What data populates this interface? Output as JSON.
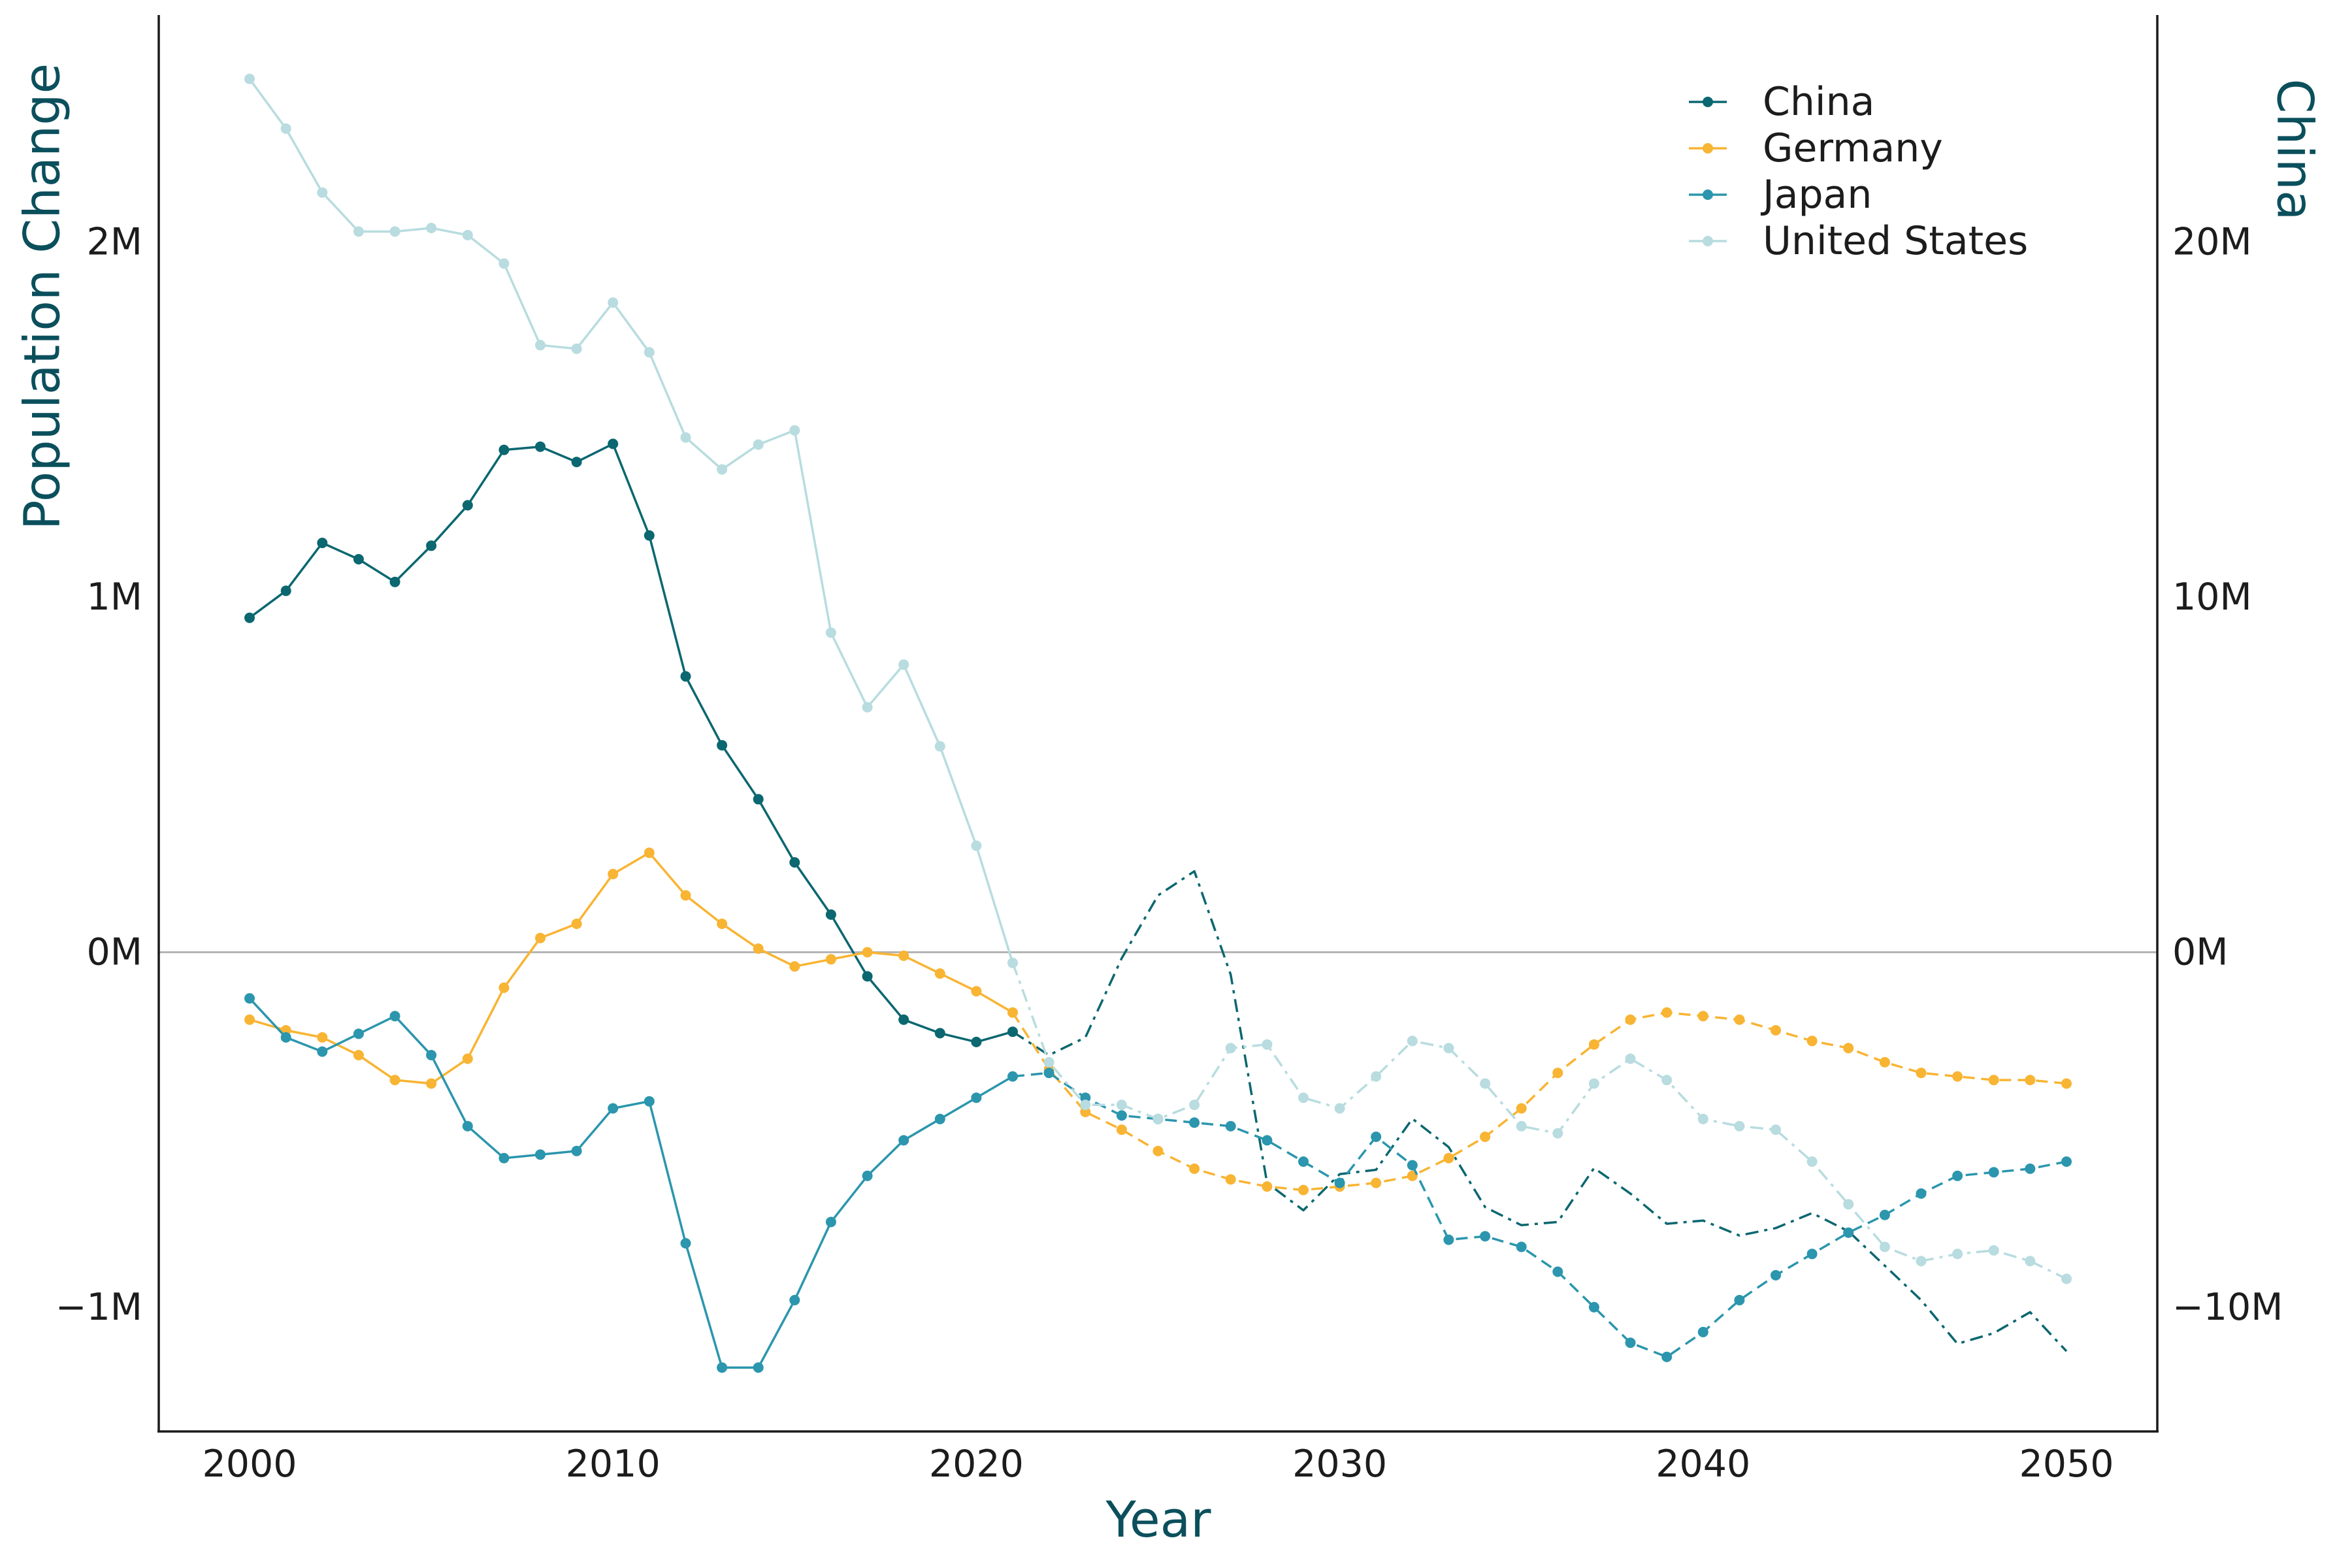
{
  "chart_data": {
    "type": "line",
    "xlabel": "Year",
    "ylabel": "Population Change",
    "y2label": "China",
    "xlim": [
      1997.5,
      2052.5
    ],
    "ylim": [
      -1.35,
      2.64
    ],
    "y2lim": [
      -13.5,
      26.4
    ],
    "x_ticks": [
      2000,
      2010,
      2020,
      2030,
      2040,
      2050
    ],
    "x_tick_labels": [
      "2000",
      "2010",
      "2020",
      "2030",
      "2040",
      "2050"
    ],
    "y_ticks": [
      -1,
      0,
      1,
      2
    ],
    "y_tick_labels": [
      "−1M",
      "0M",
      "1M",
      "2M"
    ],
    "y2_ticks": [
      -10,
      0,
      10,
      20
    ],
    "y2_tick_labels": [
      "−10M",
      "0M",
      "10M",
      "20M"
    ],
    "grid": false,
    "zero_line": true,
    "legend_position": "top-right",
    "x": [
      2000,
      2001,
      2002,
      2003,
      2004,
      2005,
      2006,
      2007,
      2008,
      2009,
      2010,
      2011,
      2012,
      2013,
      2014,
      2015,
      2016,
      2017,
      2018,
      2019,
      2020,
      2021,
      2022,
      2023,
      2024,
      2025,
      2026,
      2027,
      2028,
      2029,
      2030,
      2031,
      2032,
      2033,
      2034,
      2035,
      2036,
      2037,
      2038,
      2039,
      2040,
      2041,
      2042,
      2043,
      2044,
      2045,
      2046,
      2047,
      2048,
      2049,
      2050
    ],
    "series": [
      {
        "name": "China",
        "axis": "right",
        "color": "#0b6770",
        "solid_through": 2021,
        "projected_style": "dashdot",
        "projected_markers": false,
        "values": [
          9.42,
          10.18,
          11.53,
          11.07,
          10.43,
          11.45,
          12.59,
          14.15,
          14.24,
          13.81,
          14.32,
          11.74,
          7.77,
          5.83,
          4.31,
          2.53,
          1.06,
          -0.68,
          -1.9,
          -2.28,
          -2.53,
          -2.24,
          -2.9,
          -2.4,
          -0.17,
          1.6,
          2.28,
          -0.63,
          -6.5,
          -7.27,
          -6.25,
          -6.13,
          -4.69,
          -5.49,
          -7.18,
          -7.69,
          -7.6,
          -6.08,
          -6.8,
          -7.65,
          -7.56,
          -7.98,
          -7.77,
          -7.35,
          -7.86,
          -8.83,
          -9.8,
          -11.03,
          -10.73,
          -10.14,
          -11.24
        ]
      },
      {
        "name": "Germany",
        "axis": "left",
        "color": "#f8b433",
        "solid_through": 2021,
        "projected_style": "dashed",
        "projected_markers": true,
        "values": [
          -0.19,
          -0.22,
          -0.24,
          -0.29,
          -0.36,
          -0.37,
          -0.3,
          -0.1,
          0.04,
          0.08,
          0.22,
          0.28,
          0.16,
          0.08,
          0.01,
          -0.04,
          -0.02,
          0.0,
          -0.01,
          -0.06,
          -0.11,
          -0.17,
          -0.33,
          -0.45,
          -0.5,
          -0.56,
          -0.61,
          -0.64,
          -0.66,
          -0.67,
          -0.66,
          -0.65,
          -0.63,
          -0.58,
          -0.52,
          -0.44,
          -0.34,
          -0.26,
          -0.19,
          -0.17,
          -0.18,
          -0.19,
          -0.22,
          -0.25,
          -0.27,
          -0.31,
          -0.34,
          -0.35,
          -0.36,
          -0.36,
          -0.37
        ]
      },
      {
        "name": "Japan",
        "axis": "left",
        "color": "#2b96ad",
        "solid_through": 2021,
        "projected_style": "dashed",
        "projected_markers": true,
        "values": [
          -0.13,
          -0.24,
          -0.28,
          -0.23,
          -0.18,
          -0.29,
          -0.49,
          -0.58,
          -0.57,
          -0.56,
          -0.44,
          -0.42,
          -0.82,
          -1.17,
          -1.17,
          -0.98,
          -0.76,
          -0.63,
          -0.53,
          -0.47,
          -0.41,
          -0.35,
          -0.34,
          -0.41,
          -0.46,
          -0.47,
          -0.48,
          -0.49,
          -0.53,
          -0.59,
          -0.65,
          -0.52,
          -0.6,
          -0.81,
          -0.8,
          -0.83,
          -0.9,
          -1.0,
          -1.1,
          -1.14,
          -1.07,
          -0.98,
          -0.91,
          -0.85,
          -0.79,
          -0.74,
          -0.68,
          -0.63,
          -0.62,
          -0.61,
          -0.59
        ]
      },
      {
        "name": "United States",
        "axis": "left",
        "color": "#b8dcdf",
        "solid_through": 2021,
        "projected_style": "dashdot",
        "projected_markers": true,
        "values": [
          2.46,
          2.32,
          2.14,
          2.03,
          2.03,
          2.04,
          2.02,
          1.94,
          1.71,
          1.7,
          1.83,
          1.69,
          1.45,
          1.36,
          1.43,
          1.47,
          0.9,
          0.69,
          0.81,
          0.58,
          0.3,
          -0.03,
          -0.31,
          -0.43,
          -0.43,
          -0.47,
          -0.43,
          -0.27,
          -0.26,
          -0.41,
          -0.44,
          -0.35,
          -0.25,
          -0.27,
          -0.37,
          -0.49,
          -0.51,
          -0.37,
          -0.3,
          -0.36,
          -0.47,
          -0.49,
          -0.5,
          -0.59,
          -0.71,
          -0.83,
          -0.87,
          -0.85,
          -0.84,
          -0.87,
          -0.92
        ]
      }
    ]
  }
}
